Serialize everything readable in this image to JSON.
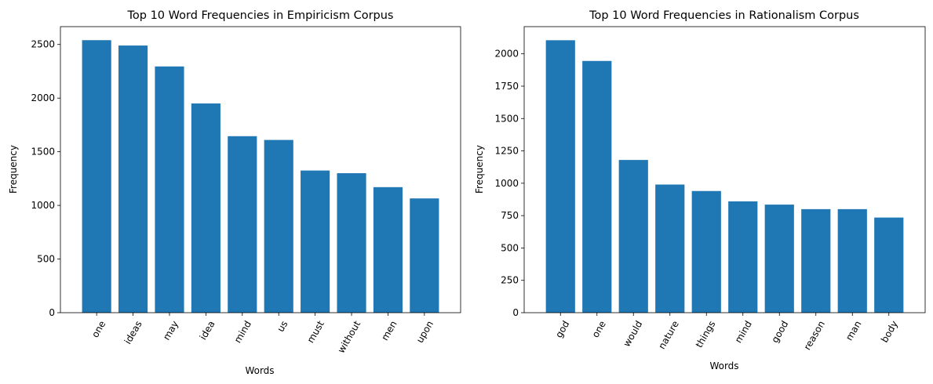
{
  "chart_data": [
    {
      "type": "bar",
      "title": "Top 10 Word Frequencies in Empiricism Corpus",
      "xlabel": "Words",
      "ylabel": "Frequency",
      "categories": [
        "one",
        "ideas",
        "may",
        "idea",
        "mind",
        "us",
        "must",
        "without",
        "men",
        "upon"
      ],
      "values": [
        2540,
        2490,
        2295,
        1950,
        1645,
        1610,
        1325,
        1300,
        1170,
        1065
      ],
      "ylim": [
        0,
        2666
      ],
      "yticks": [
        0,
        500,
        1000,
        1500,
        2000,
        2500
      ],
      "grid": false,
      "bar_color": "#1f77b4",
      "tick_label_rotation": 60
    },
    {
      "type": "bar",
      "title": "Top 10 Word Frequencies in Rationalism Corpus",
      "xlabel": "Words",
      "ylabel": "Frequency",
      "categories": [
        "god",
        "one",
        "would",
        "nature",
        "things",
        "mind",
        "good",
        "reason",
        "man",
        "body"
      ],
      "values": [
        2105,
        1945,
        1180,
        990,
        940,
        860,
        835,
        800,
        800,
        735
      ],
      "ylim": [
        0,
        2210
      ],
      "yticks": [
        0,
        250,
        500,
        750,
        1000,
        1250,
        1500,
        1750,
        2000
      ],
      "grid": false,
      "bar_color": "#1f77b4",
      "tick_label_rotation": 60
    }
  ]
}
